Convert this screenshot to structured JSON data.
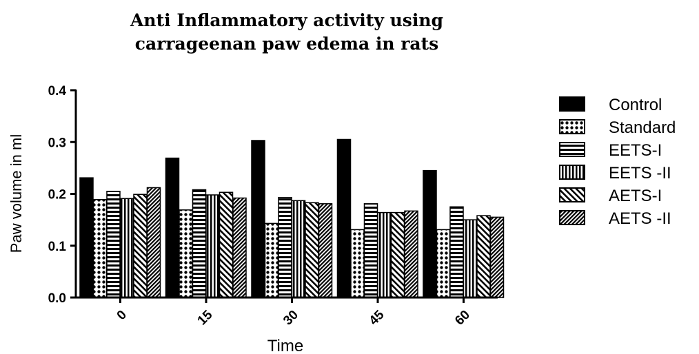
{
  "chart_data": {
    "type": "bar",
    "title_lines": [
      "Anti Inflammatory activity using",
      "carrageenan paw edema in rats"
    ],
    "xlabel": "Time",
    "ylabel": "Paw volume in ml",
    "categories": [
      "0",
      "15",
      "30",
      "45",
      "60"
    ],
    "ylim": [
      0.0,
      0.4
    ],
    "yticks": [
      "0.0",
      "0.1",
      "0.2",
      "0.3",
      "0.4"
    ],
    "legend_position": "right",
    "series": [
      {
        "name": "Control",
        "pattern": "solid",
        "values": [
          0.231,
          0.269,
          0.303,
          0.305,
          0.245
        ]
      },
      {
        "name": "Standard",
        "pattern": "dots",
        "values": [
          0.189,
          0.169,
          0.143,
          0.131,
          0.131
        ]
      },
      {
        "name": "EETS-I",
        "pattern": "hlines",
        "values": [
          0.205,
          0.208,
          0.193,
          0.181,
          0.175
        ]
      },
      {
        "name": "EETS -II",
        "pattern": "vlines",
        "values": [
          0.191,
          0.198,
          0.187,
          0.164,
          0.15
        ]
      },
      {
        "name": "AETS-I",
        "pattern": "diag",
        "values": [
          0.199,
          0.203,
          0.183,
          0.164,
          0.158
        ]
      },
      {
        "name": "AETS -II",
        "pattern": "dense-diag",
        "values": [
          0.212,
          0.192,
          0.181,
          0.167,
          0.155
        ]
      }
    ]
  }
}
